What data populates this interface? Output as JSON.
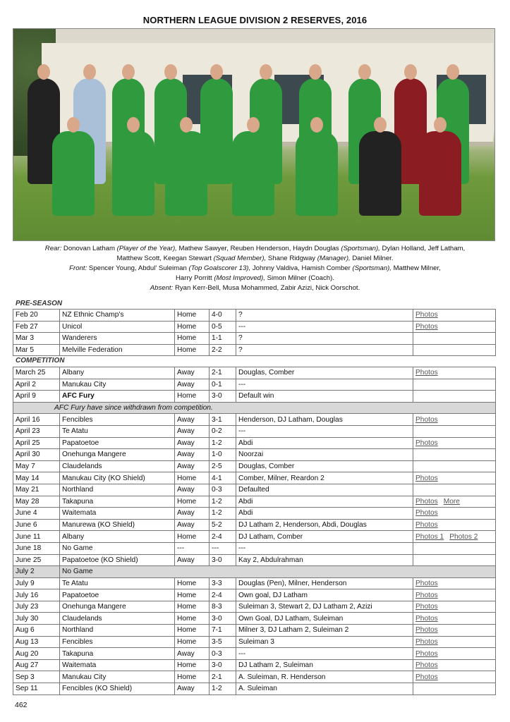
{
  "title": "NORTHERN LEAGUE DIVISION 2 RESERVES,  2016",
  "caption": {
    "rear_label": "Rear:",
    "rear_line1": [
      {
        "name": "Donovan Latham",
        "role": "(Player of the Year),"
      },
      {
        "name": "Mathew Sawyer,",
        "role": ""
      },
      {
        "name": "Reuben Henderson,",
        "role": ""
      },
      {
        "name": "Haydn Douglas",
        "role": "(Sportsman),"
      },
      {
        "name": "Dylan Holland,",
        "role": ""
      },
      {
        "name": "Jeff Latham,",
        "role": ""
      }
    ],
    "rear_line2": [
      {
        "name": "Matthew Scott,",
        "role": ""
      },
      {
        "name": "Keegan Stewart",
        "role": "(Squad Member),"
      },
      {
        "name": "Shane Ridgway",
        "role": "(Manager),"
      },
      {
        "name": "Daniel Milner.",
        "role": ""
      }
    ],
    "front_label": "Front:",
    "front_line1": [
      {
        "name": "Spencer Young,",
        "role": ""
      },
      {
        "name": "Abdul' Suleiman",
        "role": "(Top Goalscorer 13),"
      },
      {
        "name": "Johnny Valdiva,",
        "role": ""
      },
      {
        "name": "Hamish Comber",
        "role": "(Sportsman),"
      },
      {
        "name": "Matthew Milner,",
        "role": ""
      }
    ],
    "front_line2": [
      {
        "name": "Harry Porritt",
        "role": "(Most Improved),"
      },
      {
        "name": "Simon Milner (Coach).",
        "role": ""
      }
    ],
    "absent_label": "Absent:",
    "absent_text": "Ryan Kerr-Bell,  Musa Mohammed,  Zabir Azizi,  Nick Oorschot."
  },
  "preseason": {
    "label": "PRE-SEASON",
    "rows": [
      {
        "date": "Feb 20",
        "opponent": "NZ Ethnic Champ's",
        "venue": "Home",
        "score": "4-0",
        "scorers": "?",
        "links": [
          "Photos"
        ]
      },
      {
        "date": "Feb 27",
        "opponent": "Unicol",
        "venue": "Home",
        "score": "0-5",
        "scorers": "---",
        "links": [
          "Photos"
        ]
      },
      {
        "date": "Mar 3",
        "opponent": "Wanderers",
        "venue": "Home",
        "score": "1-1",
        "scorers": "?",
        "links": []
      },
      {
        "date": "Mar 5",
        "opponent": "Melville Federation",
        "venue": "Home",
        "score": "2-2",
        "scorers": "?",
        "links": []
      }
    ]
  },
  "competition": {
    "label": "COMPETITION",
    "rows": [
      {
        "date": "March 25",
        "opponent": "Albany",
        "venue": "Away",
        "score": "2-1",
        "scorers": "Douglas, Comber",
        "links": [
          "Photos"
        ]
      },
      {
        "date": "April 2",
        "opponent": "Manukau City",
        "venue": "Away",
        "score": "0-1",
        "scorers": "---",
        "links": []
      },
      {
        "date": "April 9",
        "opponent": "AFC Fury",
        "bold": true,
        "venue": "Home",
        "score": "3-0",
        "scorers": "Default win",
        "links": []
      },
      {
        "note": "AFC Fury have since withdrawn from competition."
      },
      {
        "date": "April 16",
        "opponent": "Fencibles",
        "venue": "Away",
        "score": "3-1",
        "scorers": "Henderson, DJ Latham, Douglas",
        "links": [
          "Photos"
        ]
      },
      {
        "date": "April 23",
        "opponent": "Te Atatu",
        "venue": "Away",
        "score": "0-2",
        "scorers": "---",
        "links": []
      },
      {
        "date": "April 25",
        "opponent": "Papatoetoe",
        "venue": "Away",
        "score": "1-2",
        "scorers": "Abdi",
        "links": [
          "Photos"
        ]
      },
      {
        "date": "April 30",
        "opponent": "Onehunga Mangere",
        "venue": "Away",
        "score": "1-0",
        "scorers": "Noorzai",
        "links": []
      },
      {
        "date": "May 7",
        "opponent": "Claudelands",
        "venue": "Away",
        "score": "2-5",
        "scorers": "Douglas, Comber",
        "links": []
      },
      {
        "date": "May 14",
        "opponent": "Manukau City (KO Shield)",
        "venue": "Home",
        "score": "4-1",
        "scorers": "Comber, Milner, Reardon 2",
        "links": [
          "Photos"
        ]
      },
      {
        "date": "May 21",
        "opponent": "Northland",
        "venue": "Away",
        "score": "0-3",
        "scorers": "Defaulted",
        "links": []
      },
      {
        "date": "May 28",
        "opponent": "Takapuna",
        "venue": "Home",
        "score": "1-2",
        "scorers": "Abdi",
        "links": [
          "Photos",
          "More"
        ]
      },
      {
        "date": "June 4",
        "opponent": "Waitemata",
        "venue": "Away",
        "score": "1-2",
        "scorers": "Abdi",
        "links": [
          "Photos"
        ]
      },
      {
        "date": "June 6",
        "opponent": "Manurewa (KO Shield)",
        "venue": "Away",
        "score": "5-2",
        "scorers": "DJ Latham 2, Henderson, Abdi, Douglas",
        "links": [
          "Photos"
        ]
      },
      {
        "date": "June 11",
        "opponent": "Albany",
        "venue": "Home",
        "score": "2-4",
        "scorers": "DJ Latham, Comber",
        "links": [
          "Photos 1",
          "Photos 2"
        ]
      },
      {
        "date": "June 18",
        "opponent": "No Game",
        "venue": "---",
        "score": "---",
        "scorers": "---",
        "links": []
      },
      {
        "date": "June 25",
        "opponent": "Papatoetoe (KO Shield)",
        "venue": "Away",
        "score": "3-0",
        "scorers": "Kay 2, Abdulrahman",
        "links": []
      },
      {
        "date": "July 2",
        "nogame": "No Game"
      },
      {
        "date": "July 9",
        "opponent": "Te Atatu",
        "venue": "Home",
        "score": "3-3",
        "scorers": "Douglas (Pen), Milner, Henderson",
        "links": [
          "Photos"
        ]
      },
      {
        "date": "July 16",
        "opponent": "Papatoetoe",
        "venue": "Home",
        "score": "2-4",
        "scorers": "Own goal, DJ Latham",
        "links": [
          "Photos"
        ]
      },
      {
        "date": "July 23",
        "opponent": "Onehunga Mangere",
        "venue": "Home",
        "score": "8-3",
        "scorers": "Suleiman 3, Stewart 2, DJ Latham 2, Azizi",
        "links": [
          "Photos"
        ]
      },
      {
        "date": "July 30",
        "opponent": "Claudelands",
        "venue": "Home",
        "score": "3-0",
        "scorers": "Own Goal, DJ Latham, Suleiman",
        "links": [
          "Photos"
        ]
      },
      {
        "date": "Aug 6",
        "opponent": "Northland",
        "venue": "Home",
        "score": "7-1",
        "scorers": "Milner 3, DJ Latham 2, Suleiman 2",
        "links": [
          "Photos"
        ]
      },
      {
        "date": "Aug 13",
        "opponent": "Fencibles",
        "venue": "Home",
        "score": "3-5",
        "scorers": "Suleiman 3",
        "links": [
          "Photos"
        ]
      },
      {
        "date": "Aug 20",
        "opponent": "Takapuna",
        "venue": "Away",
        "score": "0-3",
        "scorers": "---",
        "links": [
          "Photos"
        ]
      },
      {
        "date": "Aug 27",
        "opponent": "Waitemata",
        "venue": "Home",
        "score": "3-0",
        "scorers": "DJ Latham 2, Suleiman",
        "links": [
          "Photos"
        ]
      },
      {
        "date": "Sep 3",
        "opponent": "Manukau City",
        "venue": "Home",
        "score": "2-1",
        "scorers": "A. Suleiman, R. Henderson",
        "links": [
          "Photos"
        ]
      },
      {
        "date": "Sep 11",
        "opponent": "Fencibles (KO Shield)",
        "venue": "Away",
        "score": "1-2",
        "scorers": "A. Suleiman",
        "links": []
      }
    ]
  },
  "colors": {
    "kit_green": "#2f9a3e",
    "gray_row": "#d8d8d8",
    "link": "#555555"
  },
  "page_number": "462"
}
